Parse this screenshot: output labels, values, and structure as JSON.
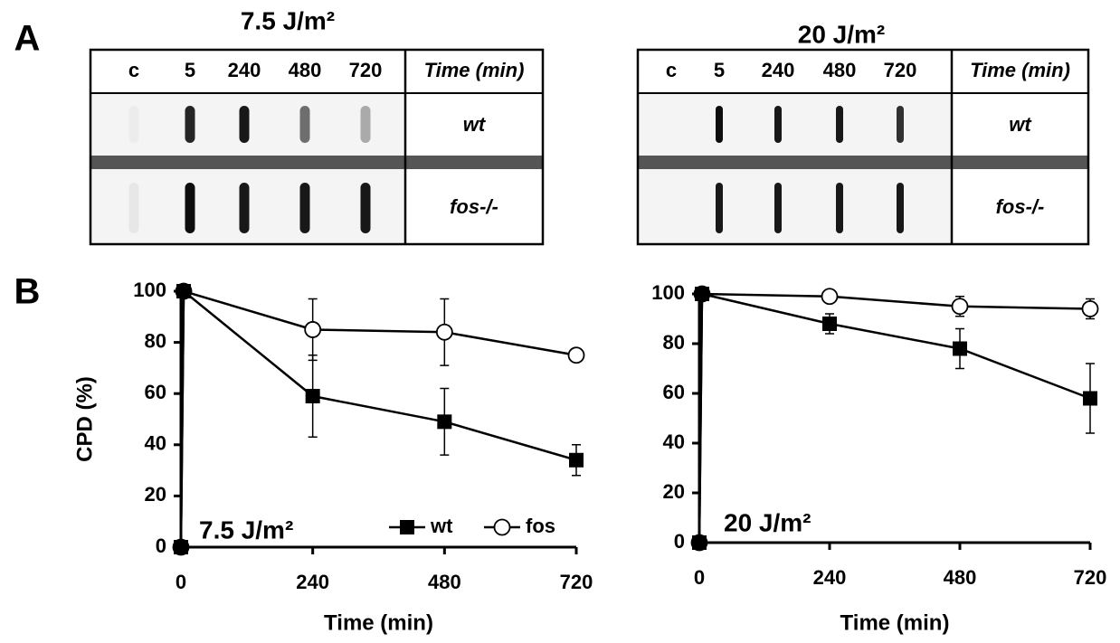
{
  "panel_labels": [
    "A",
    "B"
  ],
  "blots": [
    {
      "title": "7.5 J/m²",
      "columns": [
        "c",
        "5",
        "240",
        "480",
        "720"
      ],
      "column_header": "Time (min)",
      "rows": [
        "wt",
        "fos-/-"
      ]
    },
    {
      "title": "20 J/m²",
      "columns": [
        "c",
        "5",
        "240",
        "480",
        "720"
      ],
      "column_header": "Time (min)",
      "rows": [
        "wt",
        "fos-/-"
      ]
    }
  ],
  "chart_data": [
    {
      "type": "line",
      "annotation": "7.5 J/m²",
      "x_label": "Time (min)",
      "y_label": "CPD (%)",
      "x": [
        0,
        5,
        240,
        480,
        720
      ],
      "xlim": [
        0,
        720
      ],
      "xticks": [
        0,
        240,
        480,
        720
      ],
      "ylim": [
        0,
        100
      ],
      "yticks": [
        0,
        20,
        40,
        60,
        80,
        100
      ],
      "legend": "bottom right",
      "series": [
        {
          "name": "wt",
          "color": "#000000",
          "marker": "square",
          "values": [
            0,
            100,
            59,
            49,
            34
          ],
          "errors": [
            null,
            null,
            16,
            13,
            6
          ]
        },
        {
          "name": "fos",
          "color": "#000000",
          "marker": "circle",
          "values": [
            0,
            100,
            85,
            84,
            75
          ],
          "errors": [
            null,
            null,
            12,
            13,
            2
          ]
        }
      ]
    },
    {
      "type": "line",
      "annotation": "20 J/m²",
      "x_label": "Time (min)",
      "x": [
        0,
        5,
        240,
        480,
        720
      ],
      "xlim": [
        0,
        720
      ],
      "xticks": [
        0,
        240,
        480,
        720
      ],
      "ylim": [
        0,
        100
      ],
      "yticks": [
        0,
        20,
        40,
        60,
        80,
        100
      ],
      "series": [
        {
          "color": "#000000",
          "marker": "square",
          "values": [
            0,
            100,
            88,
            78,
            58
          ],
          "errors": [
            null,
            null,
            4,
            8,
            14
          ]
        },
        {
          "color": "#000000",
          "marker": "circle",
          "values": [
            0,
            100,
            99,
            95,
            94
          ],
          "errors": [
            null,
            null,
            null,
            4,
            4
          ]
        }
      ]
    }
  ]
}
